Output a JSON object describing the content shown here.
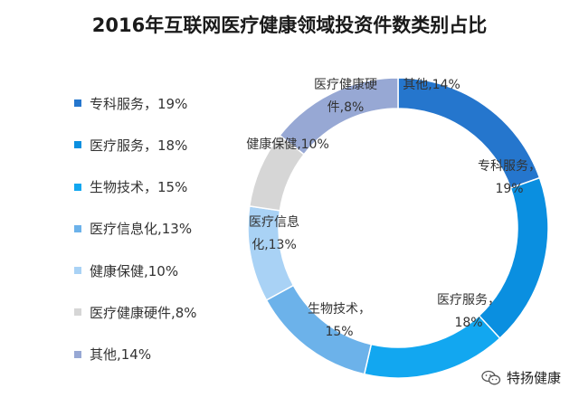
{
  "chart_data": {
    "type": "pie",
    "title": "2016年互联网医疗健康领域投资件数类别占比",
    "series": [
      {
        "name": "专科服务",
        "value": 19,
        "legend_text": "专科服务，19%",
        "slice_label": [
          "专科服务，",
          "19%"
        ],
        "color": "#2576cd"
      },
      {
        "name": "医疗服务",
        "value": 18,
        "legend_text": "医疗服务，18%",
        "slice_label": [
          "医疗服务，",
          "18%"
        ],
        "color": "#0a8fe0"
      },
      {
        "name": "生物技术",
        "value": 15,
        "legend_text": "生物技术，15%",
        "slice_label": [
          "生物技术，",
          "15%"
        ],
        "color": "#12a7f0"
      },
      {
        "name": "医疗信息化",
        "value": 13,
        "legend_text": "医疗信息化,13%",
        "slice_label": [
          "医疗信息",
          "化,13%"
        ],
        "color": "#6cb2ea"
      },
      {
        "name": "健康保健",
        "value": 10,
        "legend_text": "健康保健,10%",
        "slice_label": [
          "健康保健,10%"
        ],
        "color": "#a9d2f5"
      },
      {
        "name": "医疗健康硬件",
        "value": 8,
        "legend_text": "医疗健康硬件,8%",
        "slice_label": [
          "医疗健康硬",
          "件,8%"
        ],
        "color": "#d6d6d6"
      },
      {
        "name": "其他",
        "value": 14,
        "legend_text": "其他,14%",
        "slice_label": [
          "其他,14%"
        ],
        "color": "#97a8d4"
      }
    ],
    "legend_position": "left",
    "hole": true
  },
  "watermark": {
    "text": "特扬健康",
    "icon": "wechat-icon"
  }
}
